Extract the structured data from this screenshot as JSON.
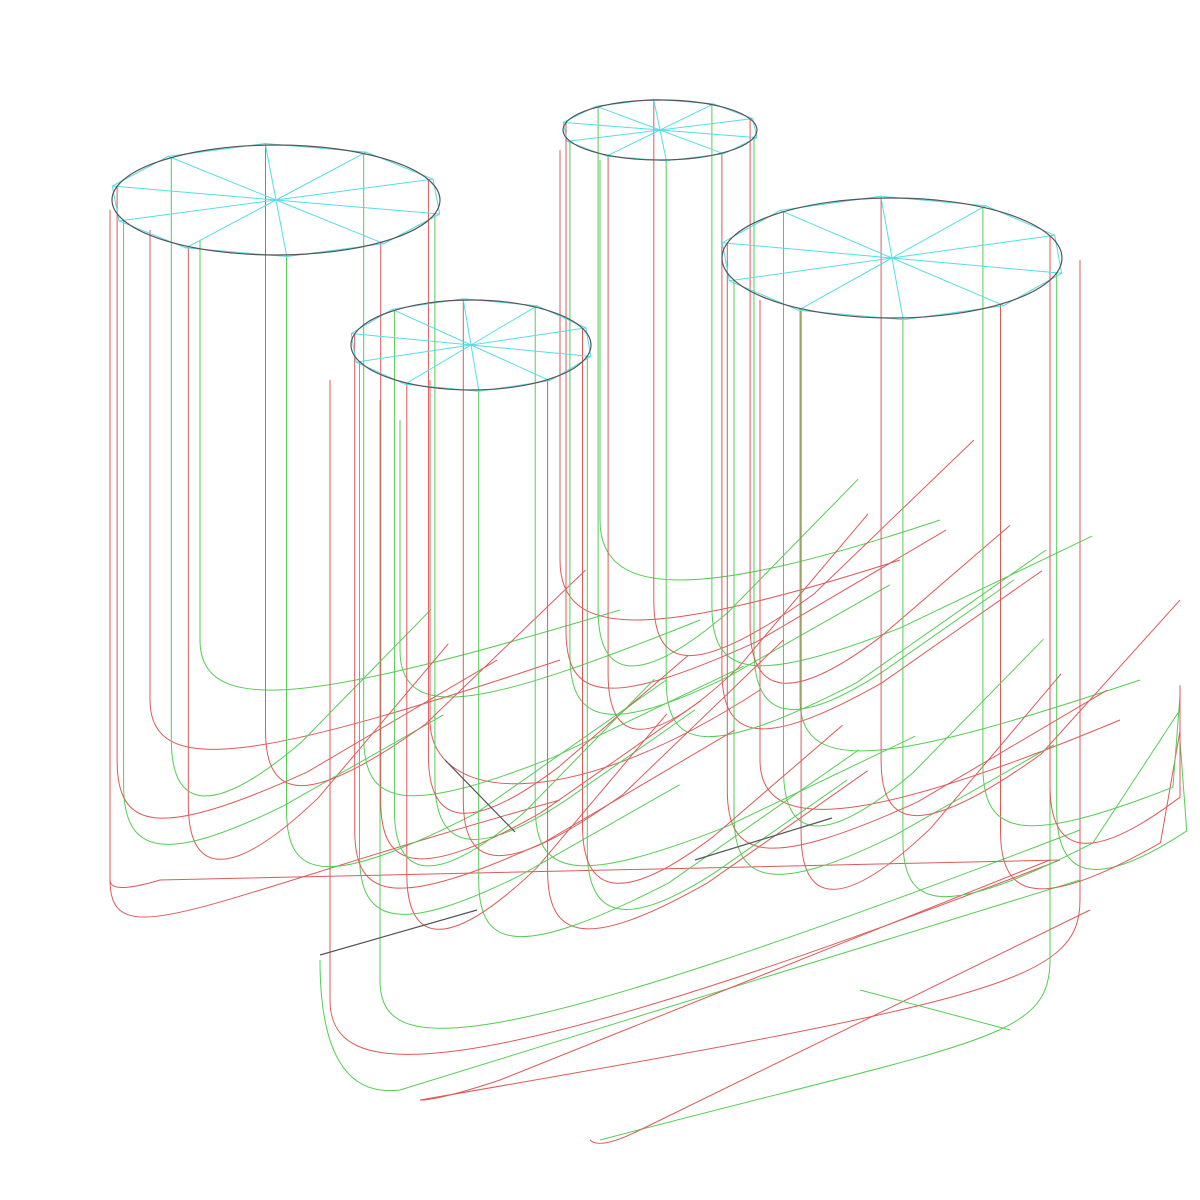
{
  "viewport": {
    "background": "#ffffff",
    "colors": {
      "outline": "#555555",
      "spoke": "#55dde6",
      "curve_green": "#55cc55",
      "curve_red": "#dd5a5a",
      "edge": "#555555"
    }
  },
  "model": {
    "type": "wireframe",
    "columns": 4,
    "spokes_per_cap": 10
  }
}
